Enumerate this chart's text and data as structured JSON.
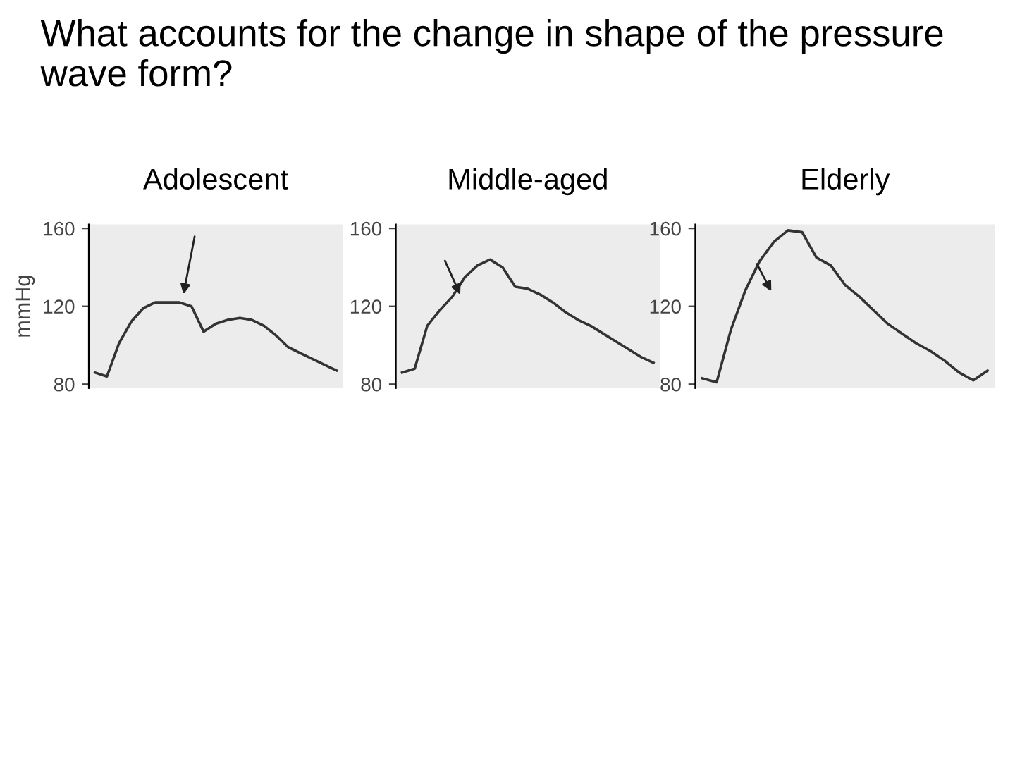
{
  "chart_data": [
    {
      "type": "line",
      "title": "Adolescent",
      "ylabel": "mmHg",
      "annotations": [
        "What accounts for the change in shape of the pressure wave form?"
      ],
      "categories": [
        null,
        null,
        null,
        null,
        null,
        null,
        null,
        null,
        null,
        null,
        null,
        null,
        null,
        null,
        null,
        null,
        null,
        null,
        null,
        null,
        null
      ],
      "series": [
        {
          "color": "#333333",
          "values": [
            86,
            84,
            101,
            112,
            119,
            122,
            122,
            122,
            120,
            107,
            111,
            113,
            114,
            113,
            110,
            105,
            99,
            96,
            93,
            90,
            87
          ]
        }
      ],
      "ylim": [
        78,
        162
      ],
      "yticks": [
        80,
        120,
        160
      ],
      "tick_labels": "y",
      "grid": false,
      "legend": false
    },
    {
      "type": "line",
      "title": "Middle-aged",
      "categories": [
        null,
        null,
        null,
        null,
        null,
        null,
        null,
        null,
        null,
        null,
        null,
        null,
        null,
        null,
        null,
        null,
        null,
        null,
        null,
        null,
        null
      ],
      "series": [
        {
          "color": "#333333",
          "values": [
            86,
            88,
            110,
            118,
            125,
            135,
            141,
            144,
            140,
            130,
            129,
            126,
            122,
            117,
            113,
            110,
            106,
            102,
            98,
            94,
            91
          ]
        }
      ],
      "ylim": [
        78,
        162
      ],
      "yticks": [
        80,
        120,
        160
      ],
      "tick_labels": "y",
      "grid": false,
      "legend": false
    },
    {
      "type": "line",
      "title": "Elderly",
      "categories": [
        null,
        null,
        null,
        null,
        null,
        null,
        null,
        null,
        null,
        null,
        null,
        null,
        null,
        null,
        null,
        null,
        null,
        null,
        null,
        null,
        null
      ],
      "series": [
        {
          "color": "#333333",
          "values": [
            83,
            81,
            108,
            128,
            143,
            153,
            159,
            158,
            145,
            141,
            131,
            125,
            118,
            111,
            106,
            101,
            97,
            92,
            86,
            82,
            87
          ]
        }
      ],
      "ylim": [
        78,
        162
      ],
      "yticks": [
        80,
        120,
        160
      ],
      "tick_labels": "y",
      "grid": false,
      "legend": false
    }
  ]
}
